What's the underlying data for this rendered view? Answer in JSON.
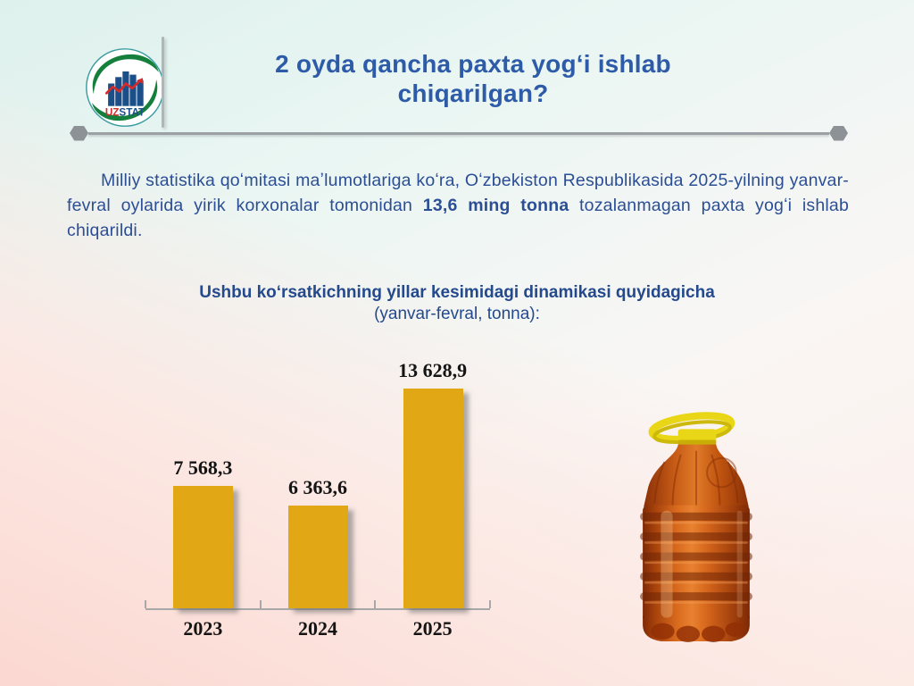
{
  "header": {
    "logo": {
      "brand_uz": "UZ",
      "brand_stat": "STAT"
    },
    "title_line1": "2 oyda qancha paxta yogʻi ishlab",
    "title_line2": "chiqarilgan?"
  },
  "intro": {
    "text_before": "Milliy statistika qoʻmitasi maʼlumotlariga koʻra, Oʻzbekiston Respublikasida 2025-yilning yanvar-fevral oylarida yirik korxonalar tomonidan ",
    "highlight": "13,6 ming tonna",
    "text_after": " tozalanmagan paxta yogʻi ishlab chiqarildi."
  },
  "subtitle": {
    "line1": "Ushbu koʻrsatkichning yillar kesimidagi dinamikasi quyidagicha",
    "line2": "(yanvar-fevral, tonna):"
  },
  "chart_data": {
    "type": "bar",
    "categories": [
      "2023",
      "2024",
      "2025"
    ],
    "values": [
      7568.3,
      6363.6,
      13628.9
    ],
    "value_labels": [
      "7 568,3",
      "6 363,6",
      "13 628,9"
    ],
    "title": "Ushbu koʻrsatkichning yillar kesimidagi dinamikasi (yanvar-fevral, tonna)",
    "xlabel": "",
    "ylabel": "",
    "unit": "tonna",
    "ylim": [
      0,
      14000
    ],
    "grid": false,
    "legend": false,
    "bar_color": "#E2A714",
    "label_color": "#141414",
    "axis_color": "#a8a8a8"
  },
  "colors": {
    "title_blue": "#2e5ba8",
    "body_blue": "#2b4e95",
    "bar_gold": "#E2A714",
    "bg_top": "#def1ed",
    "bg_bottom": "#fbd8d1"
  }
}
